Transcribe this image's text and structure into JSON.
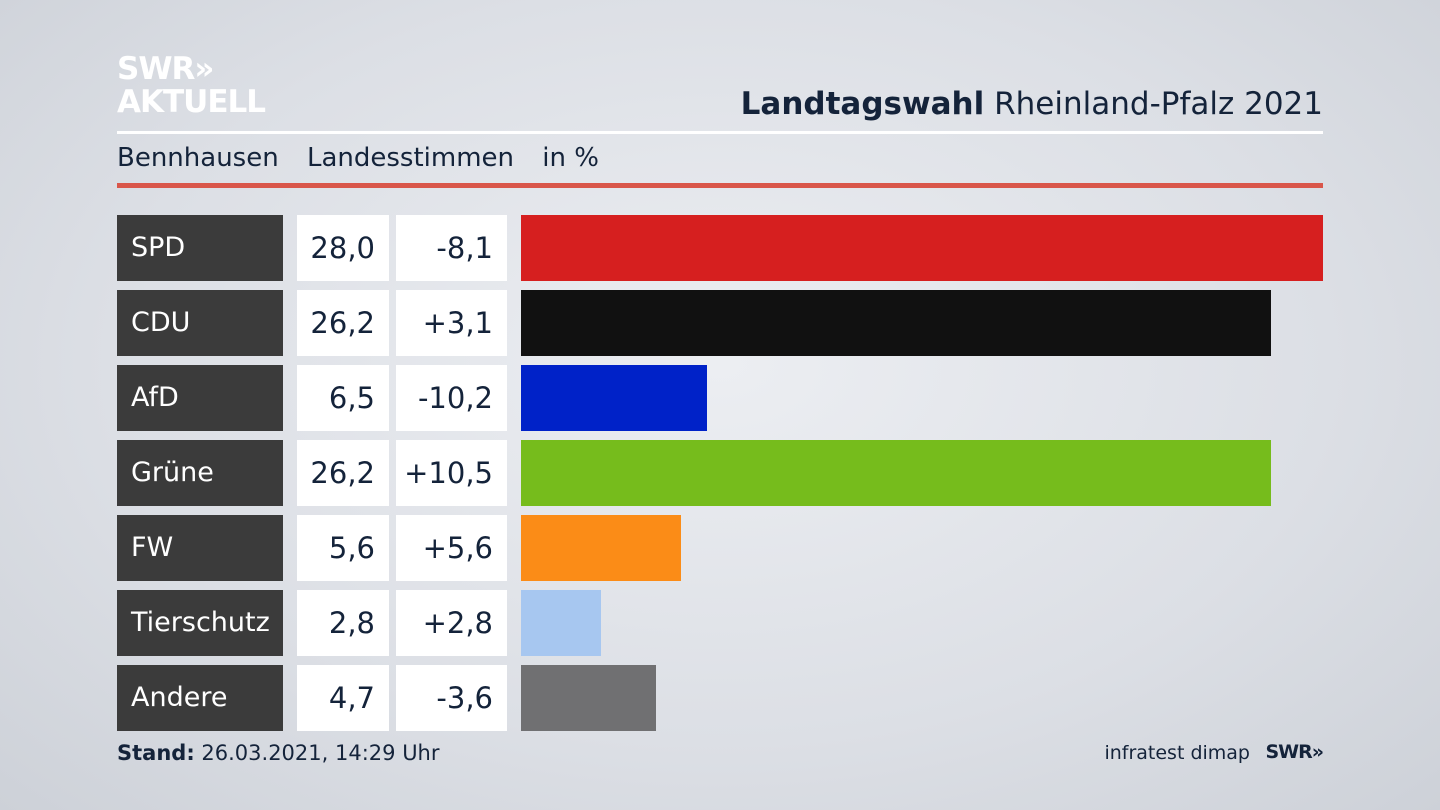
{
  "logo": {
    "line1": "SWR»",
    "line2": "AKTUELL"
  },
  "title": {
    "bold": "Landtagswahl",
    "rest": "Rheinland-Pfalz 2021"
  },
  "subheader": {
    "place": "Bennhausen",
    "vote_type": "Landesstimmen",
    "unit": "in %"
  },
  "footer": {
    "stand_label": "Stand:",
    "stand_value": "26.03.2021, 14:29 Uhr",
    "source": "infratest dimap",
    "brand": "SWR»"
  },
  "chart_data": {
    "type": "bar",
    "orientation": "horizontal",
    "categories": [
      "SPD",
      "CDU",
      "AfD",
      "Grüne",
      "FW",
      "Tierschutz",
      "Andere"
    ],
    "values": [
      28.0,
      26.2,
      6.5,
      26.2,
      5.6,
      2.8,
      4.7
    ],
    "value_labels": [
      "28,0",
      "26,2",
      "6,5",
      "26,2",
      "5,6",
      "2,8",
      "4,7"
    ],
    "diff_labels": [
      "-8,1",
      "+3,1",
      "-10,2",
      "+10,5",
      "+5,6",
      "+2,8",
      "-3,6"
    ],
    "colors": [
      "#d61f1f",
      "#111111",
      "#0022c8",
      "#76bc1c",
      "#fb8c17",
      "#a7c7f0",
      "#707072"
    ],
    "xlim": [
      0,
      28.0
    ],
    "grid": false
  }
}
